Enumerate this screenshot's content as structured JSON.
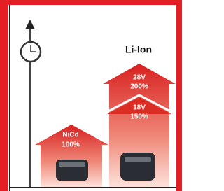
{
  "title": "Li-Ion",
  "houses": [
    {
      "label": "NiCd",
      "value": "100%"
    },
    {
      "label": "18V",
      "value": "150%"
    },
    {
      "label": "28V",
      "value": "200%"
    }
  ]
}
